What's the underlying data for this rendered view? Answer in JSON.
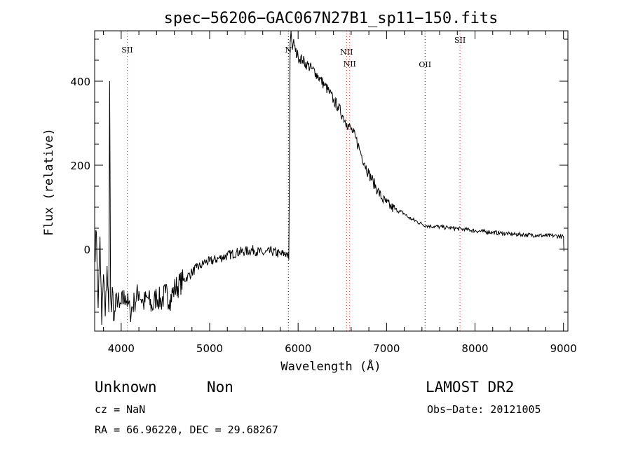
{
  "chart_data": {
    "type": "line",
    "title": "spec−56206−GAC067N27B1_sp11−150.fits",
    "xlabel": "Wavelength (Å)",
    "ylabel": "Flux (relative)",
    "xlim": [
      3700,
      9050
    ],
    "ylim": [
      -195,
      520
    ],
    "xticks": [
      4000,
      5000,
      6000,
      7000,
      8000,
      9000
    ],
    "xtick_labels": [
      "4000",
      "5000",
      "6000",
      "7000",
      "8000",
      "9000"
    ],
    "yticks": [
      0,
      200,
      400
    ],
    "ytick_labels": [
      "0",
      "200",
      "400"
    ],
    "grid": false,
    "series": [
      {
        "x": [
          3700,
          3720,
          3740,
          3760,
          3780,
          3800,
          3820,
          3840,
          3860,
          3870,
          3880,
          3890,
          3900,
          3920,
          3950,
          3980,
          4000,
          4050,
          4100,
          4150,
          4200,
          4250,
          4300,
          4350,
          4400,
          4450,
          4500,
          4550,
          4600,
          4650,
          4700,
          4750,
          4800,
          4850,
          4900,
          4950,
          5000,
          5100,
          5200,
          5300,
          5400,
          5500,
          5600,
          5700,
          5800,
          5870,
          5895,
          5900,
          5905,
          5910,
          5920,
          5935,
          5950,
          5970,
          6000,
          6050,
          6100,
          6150,
          6200,
          6250,
          6300,
          6350,
          6400,
          6450,
          6500,
          6550,
          6600,
          6650,
          6700,
          6750,
          6800,
          6850,
          6900,
          6950,
          7000,
          7050,
          7100,
          7150,
          7200,
          7250,
          7300,
          7350,
          7400,
          7450,
          7500,
          7550,
          7600,
          7650,
          7700,
          7750,
          7800,
          7850,
          7900,
          8000,
          8100,
          8200,
          8300,
          8400,
          8500,
          8600,
          8700,
          8800,
          8900,
          8980,
          9000,
          9005
        ],
        "y": [
          -20,
          40,
          -140,
          30,
          -180,
          -60,
          -160,
          -40,
          -150,
          400,
          -110,
          -150,
          -90,
          -170,
          -110,
          -140,
          -130,
          -110,
          -150,
          -125,
          -100,
          -130,
          -115,
          -140,
          -110,
          -125,
          -105,
          -120,
          -95,
          -85,
          -75,
          -65,
          -55,
          -45,
          -40,
          -30,
          -30,
          -22,
          -15,
          -8,
          -5,
          -2,
          -10,
          -5,
          -12,
          -10,
          -25,
          140,
          300,
          490,
          520,
          475,
          500,
          470,
          460,
          450,
          440,
          430,
          420,
          405,
          390,
          375,
          355,
          340,
          320,
          300,
          285,
          265,
          235,
          205,
          180,
          160,
          140,
          120,
          110,
          100,
          95,
          90,
          85,
          75,
          70,
          65,
          60,
          56,
          55,
          54,
          53,
          52,
          51,
          50,
          49,
          48,
          47,
          44,
          42,
          40,
          38,
          36,
          35,
          34,
          33,
          32,
          32,
          30,
          30,
          -5
        ]
      }
    ],
    "line_markers": [
      {
        "label": "SII",
        "x": 4068,
        "color": "#cc3333"
      },
      {
        "label": "N",
        "x": 5890,
        "color": "#000000"
      },
      {
        "label": "NII",
        "x": 6548,
        "color": "#cc3333"
      },
      {
        "label": "NII",
        "x": 6583,
        "color": "#cc3333"
      },
      {
        "label": "OII",
        "x": 7435,
        "color": "#000000"
      },
      {
        "label": "SII",
        "x": 7830,
        "color": "#cc3333"
      }
    ]
  },
  "footer": {
    "class_label": "Unknown",
    "subclass_label": "Non",
    "survey_label": "LAMOST DR2",
    "cz_text": "cz = NaN",
    "obs_date_text": "Obs−Date: 20121005",
    "coords_text": "RA =  66.96220, DEC =  29.68267"
  }
}
